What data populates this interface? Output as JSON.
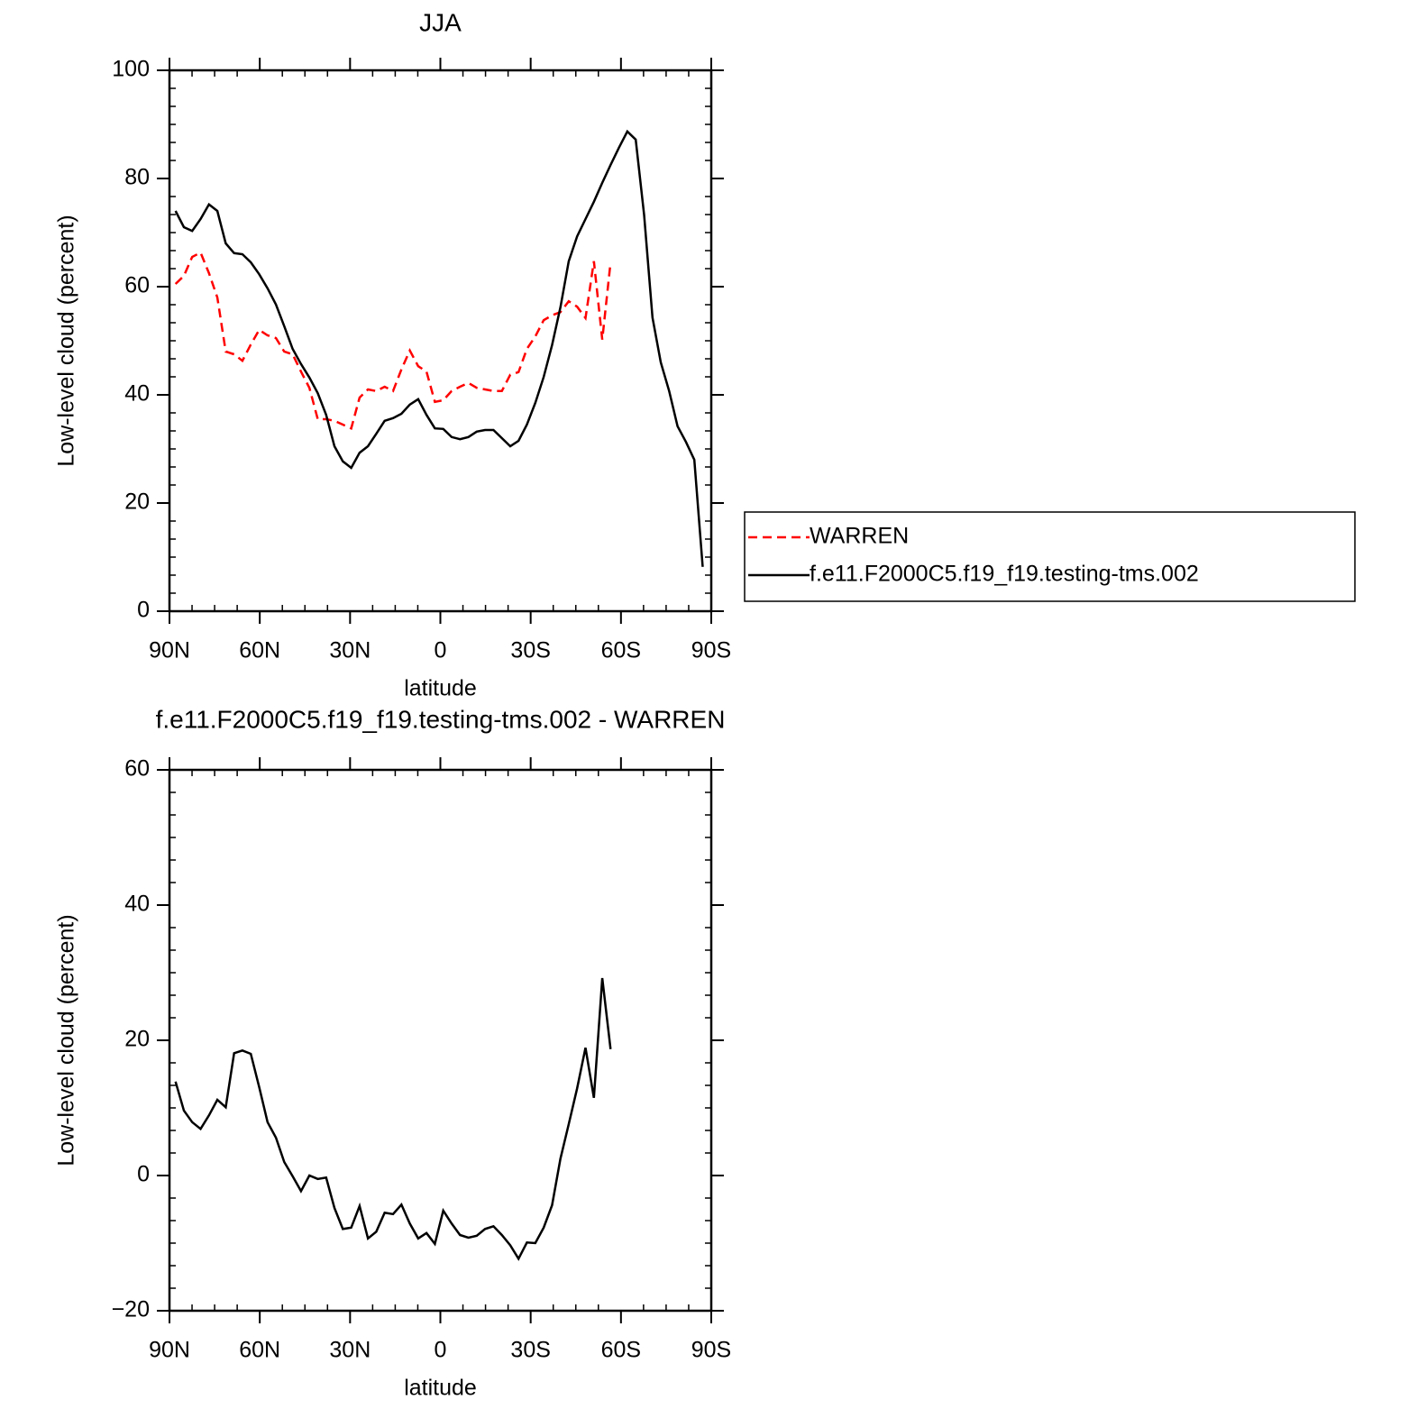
{
  "chart_data": [
    {
      "type": "line",
      "title": "JJA",
      "xlabel": "latitude",
      "ylabel": "Low-level cloud (percent)",
      "x": [
        88,
        85.22,
        82.44,
        79.66,
        76.88,
        74.1,
        71.32,
        68.54,
        65.76,
        62.98,
        60.2,
        57.42,
        54.64,
        51.86,
        49.08,
        46.3,
        43.52,
        40.74,
        37.96,
        35.18,
        32.4,
        29.62,
        26.84,
        24.06,
        21.28,
        18.5,
        15.72,
        12.94,
        10.16,
        7.38,
        4.6,
        1.82,
        -0.96,
        -3.74,
        -6.52,
        -9.3,
        -12.08,
        -14.86,
        -17.64,
        -20.42,
        -23.2,
        -25.98,
        -28.76,
        -31.54,
        -34.32,
        -37.1,
        -39.88,
        -42.66,
        -45.44,
        -48.22,
        -51.0,
        -53.78,
        -56.56,
        -59.34,
        -62.12,
        -64.9,
        -67.68,
        -70.46,
        -73.24,
        -76.02,
        -78.8,
        -81.58,
        -84.36,
        -87.14
      ],
      "series": [
        {
          "name": "WARREN",
          "color": "#ff0000",
          "line_style": "dashed",
          "values": [
            60.5,
            62,
            65.5,
            66.3,
            62.5,
            58,
            48,
            47.5,
            46.3,
            49.3,
            52,
            51,
            50.5,
            48,
            47.5,
            44.3,
            41.3,
            35.5,
            35.5,
            35.2,
            34.5,
            33.8,
            39.5,
            41,
            40.7,
            41.5,
            40.7,
            44.7,
            48.2,
            45.3,
            44.3,
            38.7,
            39,
            40.7,
            41.5,
            42.2,
            41.3,
            41,
            40.7,
            40.7,
            43.7,
            44.2,
            48.5,
            50.8,
            53.8,
            54.7,
            55.3,
            57.3,
            56.3,
            54.2,
            64.7,
            50.2,
            64.5,
            null,
            null,
            null,
            null,
            null,
            null,
            null,
            null,
            null,
            null,
            null
          ]
        },
        {
          "name": "f.e11.F2000C5.f19_f19.testing-tms.002",
          "color": "#000000",
          "line_style": "solid",
          "values": [
            74.0,
            71.0,
            70.3,
            72.5,
            75.2,
            74.0,
            68.0,
            66.2,
            66.0,
            64.5,
            62.3,
            59.7,
            56.7,
            52.7,
            48.5,
            45.7,
            43.2,
            40.3,
            36.3,
            30.5,
            27.7,
            26.5,
            29.3,
            30.5,
            32.8,
            35.2,
            35.7,
            36.5,
            38.2,
            39.2,
            36.3,
            33.8,
            33.7,
            32.2,
            31.8,
            32.2,
            33.2,
            33.5,
            33.5,
            32.0,
            30.5,
            31.5,
            34.5,
            38.5,
            43.3,
            49.2,
            56.2,
            64.7,
            69.3,
            72.5,
            75.7,
            79.2,
            82.5,
            85.7,
            88.7,
            87.2,
            73.3,
            54.3,
            46.0,
            40.7,
            34.2,
            31.3,
            28.0,
            8.2
          ]
        }
      ],
      "xlim": [
        90,
        -90
      ],
      "xticks": [
        {
          "value": 90,
          "label": "90N"
        },
        {
          "value": 60,
          "label": "60N"
        },
        {
          "value": 30,
          "label": "30N"
        },
        0,
        {
          "value": -30,
          "label": "30S"
        },
        {
          "value": -60,
          "label": "60S"
        },
        {
          "value": -90,
          "label": "90S"
        }
      ],
      "ylim": [
        0,
        100
      ],
      "yticks": [
        0,
        20,
        40,
        60,
        80,
        100
      ],
      "legend": "right"
    },
    {
      "type": "line",
      "title": "f.e11.F2000C5.f19_f19.testing-tms.002 - WARREN",
      "xlabel": "latitude",
      "ylabel": "Low-level cloud (percent)",
      "x": [
        88,
        85.22,
        82.44,
        79.66,
        76.88,
        74.1,
        71.32,
        68.54,
        65.76,
        62.98,
        60.2,
        57.42,
        54.64,
        51.86,
        49.08,
        46.3,
        43.52,
        40.74,
        37.96,
        35.18,
        32.4,
        29.62,
        26.84,
        24.06,
        21.28,
        18.5,
        15.72,
        12.94,
        10.16,
        7.38,
        4.6,
        1.82,
        -0.96,
        -3.74,
        -6.52,
        -9.3,
        -12.08,
        -14.86,
        -17.64,
        -20.42,
        -23.2,
        -25.98,
        -28.76,
        -31.54,
        -34.32,
        -37.1,
        -39.88,
        -42.66,
        -45.44,
        -48.22,
        -51.0,
        -53.78,
        -56.56
      ],
      "series": [
        {
          "color": "#000000",
          "line_style": "solid",
          "values": [
            13.9,
            9.6,
            7.9,
            6.9,
            8.9,
            11.2,
            10.1,
            18.1,
            18.5,
            18.0,
            13.1,
            7.9,
            5.6,
            2.0,
            -0.1,
            -2.3,
            0,
            -0.5,
            -0.3,
            -4.8,
            -7.9,
            -7.7,
            -4.5,
            -9.3,
            -8.3,
            -5.5,
            -5.7,
            -4.3,
            -7.1,
            -9.3,
            -8.5,
            -10.1,
            -5.2,
            -7.1,
            -8.8,
            -9.2,
            -8.9,
            -7.9,
            -7.5,
            -8.8,
            -10.3,
            -12.3,
            -9.9,
            -10.0,
            -7.7,
            -4.4,
            2.5,
            7.6,
            12.9,
            18.9,
            11.5,
            29.2,
            18.7
          ]
        }
      ],
      "xlim": [
        90,
        -90
      ],
      "xticks": [
        {
          "value": 90,
          "label": "90N"
        },
        {
          "value": 60,
          "label": "60N"
        },
        {
          "value": 30,
          "label": "30N"
        },
        0,
        {
          "value": -30,
          "label": "30S"
        },
        {
          "value": -60,
          "label": "60S"
        },
        {
          "value": -90,
          "label": "90S"
        }
      ],
      "ylim": [
        -20,
        60
      ],
      "yticks": [
        {
          "value": -20,
          "label": "−20"
        },
        0,
        20,
        40,
        60
      ]
    }
  ]
}
